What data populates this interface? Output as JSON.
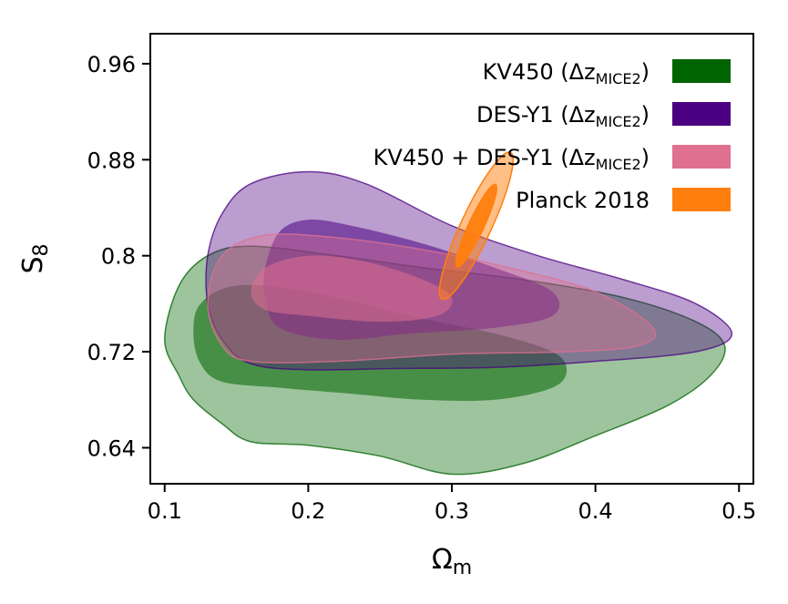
{
  "chart_data": {
    "type": "contour",
    "title": "",
    "xlabel": "Ω",
    "xlabel_sub": "m",
    "ylabel": "S",
    "ylabel_sub": "8",
    "xlim": [
      0.09,
      0.51
    ],
    "ylim": [
      0.61,
      0.985
    ],
    "xticks": [
      "0.1",
      "0.2",
      "0.3",
      "0.4",
      "0.5"
    ],
    "yticks": [
      "0.64",
      "0.72",
      "0.8",
      "0.88",
      "0.96"
    ],
    "xtick_values": [
      0.1,
      0.2,
      0.3,
      0.4,
      0.5
    ],
    "ytick_values": [
      0.64,
      0.72,
      0.8,
      0.88,
      0.96
    ],
    "legend_position": "top-right",
    "legend": [
      {
        "label": "KV450 (Δz",
        "sub": "MICE2",
        "suffix": ")",
        "color": "#006400"
      },
      {
        "label": "DES-Y1 (Δz",
        "sub": "MICE2",
        "suffix": ")",
        "color": "#4b0082"
      },
      {
        "label": "KV450 + DES-Y1 (Δz",
        "sub": "MICE2",
        "suffix": ")",
        "color": "#e07090"
      },
      {
        "label": "Planck 2018",
        "sub": "",
        "suffix": "",
        "color": "#ff7f0e"
      }
    ],
    "series": [
      {
        "name": "KV450 (ΔzMICE2)",
        "color": "#006400",
        "outer": [
          [
            0.1,
            0.73
          ],
          [
            0.11,
            0.7
          ],
          [
            0.12,
            0.68
          ],
          [
            0.14,
            0.66
          ],
          [
            0.16,
            0.645
          ],
          [
            0.2,
            0.642
          ],
          [
            0.25,
            0.633
          ],
          [
            0.3,
            0.618
          ],
          [
            0.35,
            0.627
          ],
          [
            0.4,
            0.65
          ],
          [
            0.45,
            0.675
          ],
          [
            0.48,
            0.7
          ],
          [
            0.49,
            0.725
          ],
          [
            0.47,
            0.745
          ],
          [
            0.42,
            0.765
          ],
          [
            0.35,
            0.78
          ],
          [
            0.28,
            0.79
          ],
          [
            0.22,
            0.8
          ],
          [
            0.16,
            0.808
          ],
          [
            0.13,
            0.8
          ],
          [
            0.11,
            0.775
          ]
        ],
        "inner": [
          [
            0.12,
            0.735
          ],
          [
            0.125,
            0.71
          ],
          [
            0.14,
            0.695
          ],
          [
            0.18,
            0.69
          ],
          [
            0.23,
            0.685
          ],
          [
            0.28,
            0.68
          ],
          [
            0.33,
            0.68
          ],
          [
            0.37,
            0.69
          ],
          [
            0.38,
            0.705
          ],
          [
            0.37,
            0.72
          ],
          [
            0.33,
            0.735
          ],
          [
            0.27,
            0.75
          ],
          [
            0.2,
            0.77
          ],
          [
            0.15,
            0.775
          ],
          [
            0.125,
            0.76
          ]
        ]
      },
      {
        "name": "DES-Y1 (ΔzMICE2)",
        "color": "#4b0082",
        "outer": [
          [
            0.14,
            0.835
          ],
          [
            0.16,
            0.86
          ],
          [
            0.2,
            0.87
          ],
          [
            0.24,
            0.86
          ],
          [
            0.3,
            0.825
          ],
          [
            0.36,
            0.8
          ],
          [
            0.42,
            0.78
          ],
          [
            0.47,
            0.76
          ],
          [
            0.495,
            0.735
          ],
          [
            0.47,
            0.72
          ],
          [
            0.4,
            0.712
          ],
          [
            0.33,
            0.707
          ],
          [
            0.26,
            0.706
          ],
          [
            0.2,
            0.705
          ],
          [
            0.16,
            0.71
          ],
          [
            0.14,
            0.73
          ],
          [
            0.13,
            0.76
          ],
          [
            0.13,
            0.8
          ]
        ],
        "inner": [
          [
            0.17,
            0.79
          ],
          [
            0.18,
            0.82
          ],
          [
            0.2,
            0.83
          ],
          [
            0.23,
            0.825
          ],
          [
            0.28,
            0.81
          ],
          [
            0.33,
            0.79
          ],
          [
            0.37,
            0.77
          ],
          [
            0.37,
            0.75
          ],
          [
            0.33,
            0.74
          ],
          [
            0.27,
            0.735
          ],
          [
            0.22,
            0.73
          ],
          [
            0.18,
            0.74
          ],
          [
            0.17,
            0.765
          ]
        ]
      },
      {
        "name": "KV450 + DES-Y1 (ΔzMICE2)",
        "color": "#e07090",
        "outer": [
          [
            0.13,
            0.76
          ],
          [
            0.14,
            0.8
          ],
          [
            0.17,
            0.817
          ],
          [
            0.22,
            0.815
          ],
          [
            0.28,
            0.805
          ],
          [
            0.34,
            0.79
          ],
          [
            0.4,
            0.77
          ],
          [
            0.44,
            0.74
          ],
          [
            0.43,
            0.725
          ],
          [
            0.38,
            0.72
          ],
          [
            0.3,
            0.718
          ],
          [
            0.22,
            0.712
          ],
          [
            0.16,
            0.712
          ],
          [
            0.14,
            0.725
          ]
        ],
        "inner": [
          [
            0.16,
            0.77
          ],
          [
            0.17,
            0.79
          ],
          [
            0.2,
            0.8
          ],
          [
            0.24,
            0.795
          ],
          [
            0.28,
            0.78
          ],
          [
            0.3,
            0.765
          ],
          [
            0.29,
            0.75
          ],
          [
            0.25,
            0.745
          ],
          [
            0.2,
            0.75
          ],
          [
            0.17,
            0.755
          ]
        ]
      },
      {
        "name": "Planck 2018",
        "color": "#ff7f0e",
        "center": [
          0.317,
          0.825
        ],
        "outer_axes": [
          0.032,
          0.006
        ],
        "inner_axes": [
          0.018,
          0.003
        ],
        "angle_deg": -65
      }
    ]
  }
}
